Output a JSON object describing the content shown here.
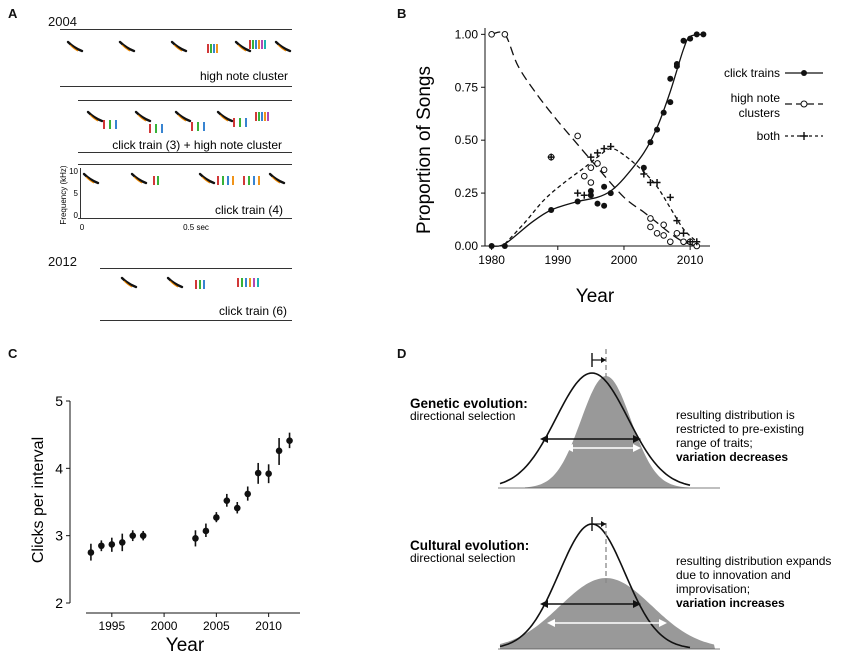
{
  "panels": {
    "a": "A",
    "b": "B",
    "c": "C",
    "d": "D"
  },
  "panel_a": {
    "year_top": "2004",
    "year_bottom": "2012",
    "strip_labels": [
      "high note cluster",
      "click train (3) + high note cluster",
      "click train (4)",
      "click train (6)"
    ],
    "freq_axis_label": "Frequency (kHz)",
    "freq_ticks": [
      "10",
      "5",
      "0"
    ],
    "time_ticks": [
      "0",
      "0.5 sec"
    ]
  },
  "chart_data": [
    {
      "id": "B",
      "type": "scatter",
      "xlabel": "Year",
      "ylabel": "Proportion of Songs",
      "xlim": [
        1979,
        2013
      ],
      "ylim": [
        0,
        1.03
      ],
      "x_ticks": [
        1980,
        1990,
        2000,
        2010
      ],
      "y_ticks": [
        "0.00",
        "0.25",
        "0.50",
        "0.75",
        "1.00"
      ],
      "legend_position": "right",
      "series": [
        {
          "name": "click trains",
          "marker": "filled-circle",
          "line": "solid",
          "points": [
            [
              1980,
              0
            ],
            [
              1982,
              0
            ],
            [
              1989,
              0.17
            ],
            [
              1993,
              0.21
            ],
            [
              1995,
              0.24
            ],
            [
              1995,
              0.26
            ],
            [
              1996,
              0.2
            ],
            [
              1997,
              0.19
            ],
            [
              1997,
              0.28
            ],
            [
              1998,
              0.25
            ],
            [
              2003,
              0.37
            ],
            [
              2004,
              0.49
            ],
            [
              2005,
              0.55
            ],
            [
              2006,
              0.63
            ],
            [
              2007,
              0.68
            ],
            [
              2007,
              0.79
            ],
            [
              2008,
              0.85
            ],
            [
              2008,
              0.86
            ],
            [
              2009,
              0.97
            ],
            [
              2010,
              0.98
            ],
            [
              2011,
              1.0
            ],
            [
              2012,
              1.0
            ]
          ],
          "fit": [
            [
              1980,
              0
            ],
            [
              1982,
              0.01
            ],
            [
              1986,
              0.11
            ],
            [
              1989,
              0.17
            ],
            [
              1993,
              0.21
            ],
            [
              1996,
              0.23
            ],
            [
              1998,
              0.26
            ],
            [
              2000,
              0.32
            ],
            [
              2003,
              0.44
            ],
            [
              2005,
              0.56
            ],
            [
              2007,
              0.73
            ],
            [
              2009,
              0.93
            ],
            [
              2010,
              0.99
            ],
            [
              2012,
              1.0
            ]
          ]
        },
        {
          "name": "high note clusters",
          "marker": "open-circle",
          "line": "long-dash",
          "points": [
            [
              1980,
              1.0
            ],
            [
              1982,
              1.0
            ],
            [
              1989,
              0.42
            ],
            [
              1993,
              0.52
            ],
            [
              1994,
              0.33
            ],
            [
              1995,
              0.3
            ],
            [
              1995,
              0.37
            ],
            [
              1996,
              0.39
            ],
            [
              1997,
              0.36
            ],
            [
              2004,
              0.13
            ],
            [
              2004,
              0.09
            ],
            [
              2005,
              0.06
            ],
            [
              2006,
              0.05
            ],
            [
              2006,
              0.1
            ],
            [
              2007,
              0.02
            ],
            [
              2008,
              0.06
            ],
            [
              2009,
              0.02
            ],
            [
              2010,
              0.02
            ],
            [
              2011,
              0.0
            ]
          ],
          "fit": [
            [
              1980,
              1.0
            ],
            [
              1982,
              1.0
            ],
            [
              1984,
              0.85
            ],
            [
              1987,
              0.71
            ],
            [
              1990,
              0.59
            ],
            [
              1993,
              0.48
            ],
            [
              1996,
              0.37
            ],
            [
              2000,
              0.23
            ],
            [
              2003,
              0.16
            ],
            [
              2005,
              0.11
            ],
            [
              2007,
              0.06
            ],
            [
              2009,
              0.02
            ],
            [
              2011,
              0.0
            ]
          ]
        },
        {
          "name": "both",
          "marker": "plus",
          "line": "short-dash",
          "points": [
            [
              1989,
              0.42
            ],
            [
              1993,
              0.25
            ],
            [
              1994,
              0.24
            ],
            [
              1995,
              0.42
            ],
            [
              1996,
              0.44
            ],
            [
              1997,
              0.46
            ],
            [
              1998,
              0.47
            ],
            [
              2003,
              0.34
            ],
            [
              2004,
              0.3
            ],
            [
              2005,
              0.3
            ],
            [
              2007,
              0.23
            ],
            [
              2008,
              0.12
            ],
            [
              2009,
              0.06
            ],
            [
              2010,
              0.02
            ],
            [
              2011,
              0.02
            ]
          ],
          "fit": [
            [
              1982,
              0.01
            ],
            [
              1985,
              0.11
            ],
            [
              1988,
              0.22
            ],
            [
              1991,
              0.3
            ],
            [
              1994,
              0.37
            ],
            [
              1996,
              0.42
            ],
            [
              1998,
              0.46
            ],
            [
              2000,
              0.43
            ],
            [
              2003,
              0.35
            ],
            [
              2005,
              0.28
            ],
            [
              2007,
              0.18
            ],
            [
              2009,
              0.08
            ],
            [
              2011,
              0.02
            ]
          ]
        }
      ]
    },
    {
      "id": "C",
      "type": "scatter",
      "xlabel": "Year",
      "ylabel": "Clicks per interval",
      "xlim": [
        1991,
        2013
      ],
      "ylim": [
        2,
        5
      ],
      "x_ticks": [
        1995,
        2000,
        2005,
        2010
      ],
      "y_ticks": [
        2,
        3,
        4,
        5
      ],
      "error_bars": true,
      "points": [
        {
          "x": 1993,
          "y": 2.75,
          "lo": 2.63,
          "hi": 2.88
        },
        {
          "x": 1994,
          "y": 2.85,
          "lo": 2.77,
          "hi": 2.93
        },
        {
          "x": 1995,
          "y": 2.87,
          "lo": 2.76,
          "hi": 2.97
        },
        {
          "x": 1996,
          "y": 2.9,
          "lo": 2.77,
          "hi": 3.03
        },
        {
          "x": 1997,
          "y": 3.0,
          "lo": 2.92,
          "hi": 3.08
        },
        {
          "x": 1998,
          "y": 3.0,
          "lo": 2.93,
          "hi": 3.07
        },
        {
          "x": 2003,
          "y": 2.96,
          "lo": 2.84,
          "hi": 3.08
        },
        {
          "x": 2004,
          "y": 3.07,
          "lo": 2.98,
          "hi": 3.18
        },
        {
          "x": 2005,
          "y": 3.27,
          "lo": 3.2,
          "hi": 3.35
        },
        {
          "x": 2006,
          "y": 3.52,
          "lo": 3.43,
          "hi": 3.62
        },
        {
          "x": 2007,
          "y": 3.41,
          "lo": 3.33,
          "hi": 3.5
        },
        {
          "x": 2008,
          "y": 3.62,
          "lo": 3.52,
          "hi": 3.73
        },
        {
          "x": 2009,
          "y": 3.93,
          "lo": 3.77,
          "hi": 4.08
        },
        {
          "x": 2010,
          "y": 3.92,
          "lo": 3.78,
          "hi": 4.06
        },
        {
          "x": 2011,
          "y": 4.26,
          "lo": 4.05,
          "hi": 4.45
        },
        {
          "x": 2012,
          "y": 4.41,
          "lo": 4.3,
          "hi": 4.53
        }
      ]
    }
  ],
  "panel_d": {
    "genetic": {
      "title": "Genetic evolution:",
      "subtitle": "directional selection",
      "desc_lines": [
        "resulting distribution is",
        "restricted to pre-existing",
        "range of traits;"
      ],
      "desc_bold": "variation decreases"
    },
    "cultural": {
      "title": "Cultural evolution:",
      "subtitle": "directional selection",
      "desc_lines": [
        "resulting distribution expands",
        "due to innovation and",
        "improvisation;"
      ],
      "desc_bold": "variation increases"
    }
  },
  "colors": {
    "shade": "#999999",
    "ink": "#111111"
  }
}
